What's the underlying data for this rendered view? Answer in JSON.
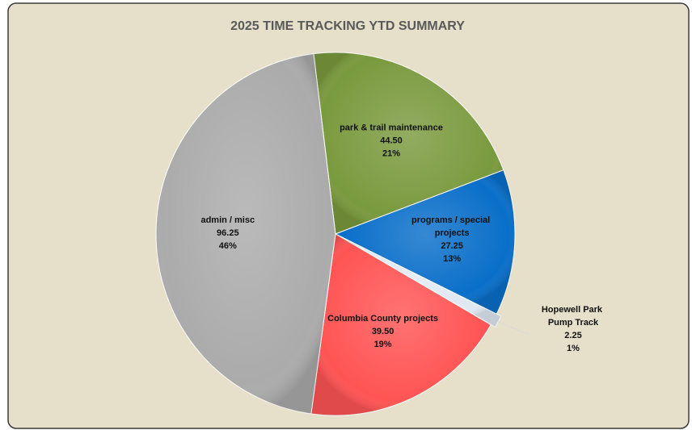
{
  "chart_data": {
    "type": "pie",
    "title": "2025 TIME TRACKING YTD SUMMARY",
    "categories": [
      "park & trail maintenance",
      "programs / special projects",
      "Hopewell Park Pump Track",
      "Columbia County projects",
      "admin / misc"
    ],
    "values": [
      44.5,
      27.25,
      2.25,
      39.5,
      96.25
    ],
    "value_labels": [
      "44.50",
      "27.25",
      "2.25",
      "39.50",
      "96.25"
    ],
    "percentages": [
      21,
      13,
      1,
      19,
      46
    ],
    "percentage_labels": [
      "21%",
      "13%",
      "1%",
      "19%",
      "46%"
    ],
    "colors": [
      "#7a9a3e",
      "#0a6fc9",
      "#dfe8f3",
      "#ff5454",
      "#ababab"
    ]
  }
}
